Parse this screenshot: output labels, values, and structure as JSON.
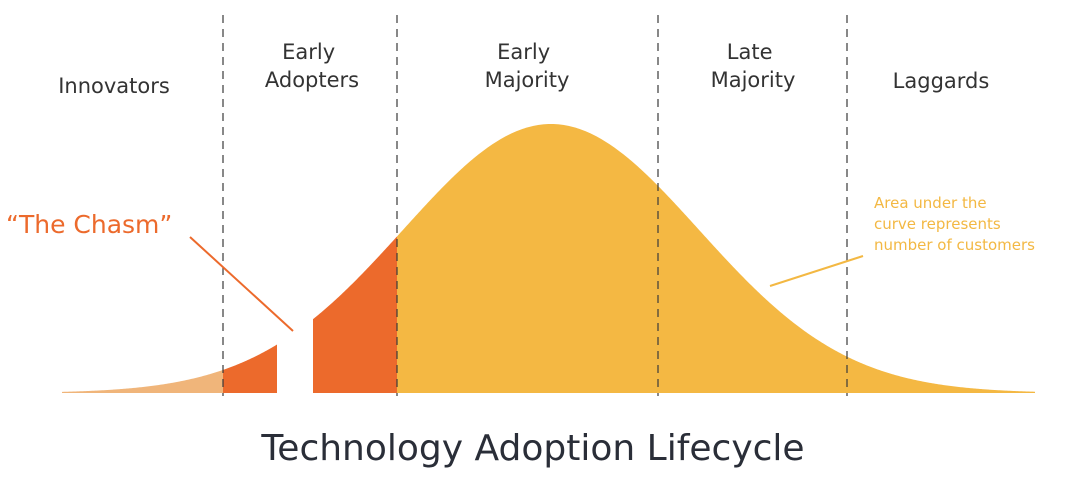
{
  "segments": [
    {
      "name": "Innovators",
      "lines": [
        "Innovators"
      ]
    },
    {
      "name": "Early Adopters",
      "lines": [
        "Early",
        "Adopters"
      ]
    },
    {
      "name": "Early Majority",
      "lines": [
        "Early",
        "Majority"
      ]
    },
    {
      "name": "Late Majority",
      "lines": [
        "Late",
        "Majority"
      ]
    },
    {
      "name": "Laggards",
      "lines": [
        "Laggards"
      ]
    }
  ],
  "chasm_label": "“The Chasm”",
  "annotation_lines": [
    "Area under the",
    "curve represents",
    "number of customers"
  ],
  "title": "Technology Adoption Lifecycle",
  "colors": {
    "innovators_fill": "#f0b57a",
    "early_adopters_fill": "#ec6a2c",
    "majority_fill": "#f4b843",
    "chasm_text": "#ec6a2c",
    "annotation_text": "#f3b843",
    "title_text": "#2a2e38",
    "label_text": "#333333"
  }
}
